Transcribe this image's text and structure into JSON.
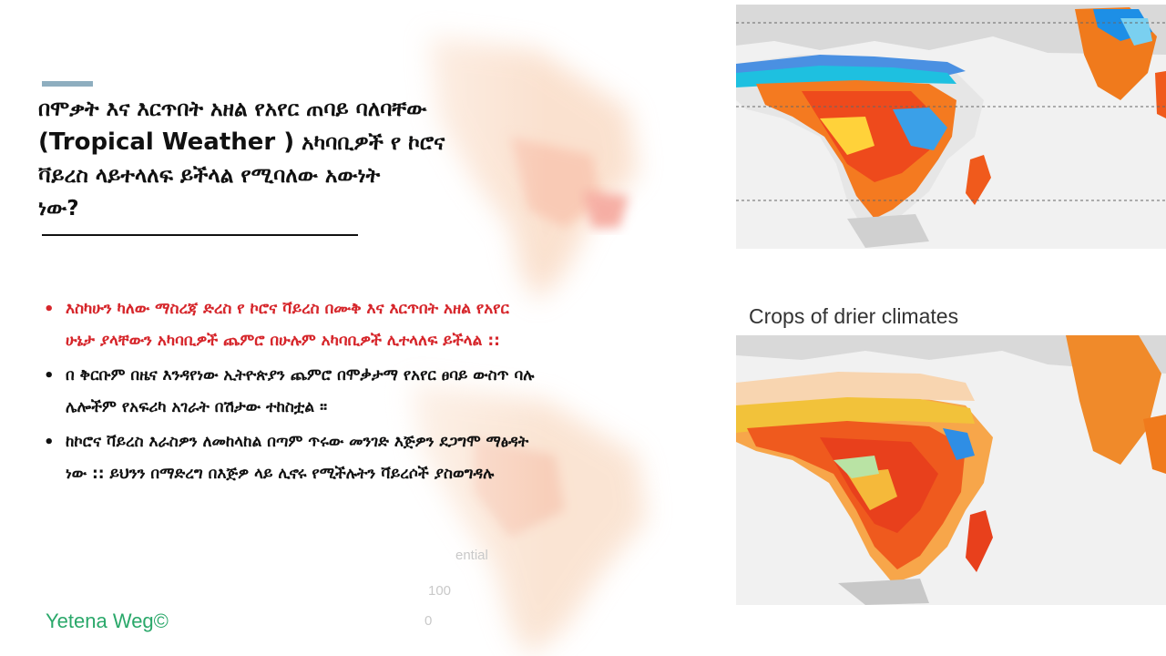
{
  "title": {
    "line1": "በሞቃት እና እርጥበት አዘል የአየር ጠባይ ባለባቸው",
    "latin": "(Tropical Weather )",
    "line2_rest": " አካባቢዎች የ ኮሮና",
    "line3": "ቫይረስ ላይተላለፍ ይችላል የሚባለው አውነት",
    "line4": "ነው?"
  },
  "bullets": [
    {
      "text": "እስካሁን ካለው ማስረጃ ድረስ የ ኮሮና ቫይረስ በሙቅ እና እርጥበት አዘል የአየር ሁኔታ ያላቸውን አካባቢዎች ጨምሮ በሁሉም አካባቢዎች ሊተላለፍ ይችላል ::",
      "color": "#d6262b"
    },
    {
      "text": "በ ቅርቡም በዜና እንዳየነው ኢትዮጵያን ጨምሮ በሞቃታማ የአየር ፀባይ ውስጥ ባሉ ሌሎችም የአፍሪካ አገራት በሽታው ተከስቷል ።",
      "color": "#111111"
    },
    {
      "text": " ከኮሮና ቫይረስ እራስዎን ለመከላከል በጣም ጥሩው መንገድ እጅዎን ደጋግሞ ማፅዳት ነው :: ይህንን በማድረግ በእጅዎ ላይ ሊኖሩ የሚችሉትን ቫይረሶች ያስወግዳሉ",
      "color": "#111111"
    }
  ],
  "bullet_symbol": "•",
  "map_caption": "Crops of drier climates",
  "ghost_labels": [
    "ential",
    "100",
    "0"
  ],
  "footer": "Yetena Weg©",
  "colors": {
    "accent_bar": "#8eaebf",
    "red_text": "#d6262b",
    "footer_green": "#2aa86a"
  }
}
